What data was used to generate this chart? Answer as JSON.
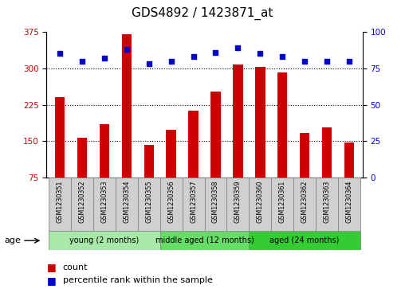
{
  "title": "GDS4892 / 1423871_at",
  "samples": [
    "GSM1230351",
    "GSM1230352",
    "GSM1230353",
    "GSM1230354",
    "GSM1230355",
    "GSM1230356",
    "GSM1230357",
    "GSM1230358",
    "GSM1230359",
    "GSM1230360",
    "GSM1230361",
    "GSM1230362",
    "GSM1230363",
    "GSM1230364"
  ],
  "counts": [
    240,
    158,
    185,
    370,
    143,
    173,
    213,
    252,
    307,
    303,
    292,
    167,
    178,
    147
  ],
  "percentiles": [
    85,
    80,
    82,
    88,
    78,
    80,
    83,
    86,
    89,
    85,
    83,
    80,
    80,
    80
  ],
  "ylim_left": [
    75,
    375
  ],
  "ylim_right": [
    0,
    100
  ],
  "yticks_left": [
    75,
    150,
    225,
    300,
    375
  ],
  "yticks_right": [
    0,
    25,
    50,
    75,
    100
  ],
  "bar_color": "#cc0000",
  "dot_color": "#0000cc",
  "bar_bottom": 75,
  "groups": [
    {
      "label": "young (2 months)",
      "start": 0,
      "end": 4
    },
    {
      "label": "middle aged (12 months)",
      "start": 5,
      "end": 8
    },
    {
      "label": "aged (24 months)",
      "start": 9,
      "end": 13
    }
  ],
  "group_colors": [
    "#a8e8a8",
    "#66dd66",
    "#33cc33"
  ],
  "legend_count_label": "count",
  "legend_percentile_label": "percentile rank within the sample",
  "age_label": "age",
  "title_fontsize": 11,
  "tick_fontsize": 7.5,
  "sample_fontsize": 5.8,
  "group_fontsize": 7,
  "legend_fontsize": 8,
  "background_color": "#ffffff",
  "plot_bg_color": "#ffffff",
  "sample_box_color": "#d0d0d0",
  "dotted_lines": [
    150,
    225,
    300
  ]
}
